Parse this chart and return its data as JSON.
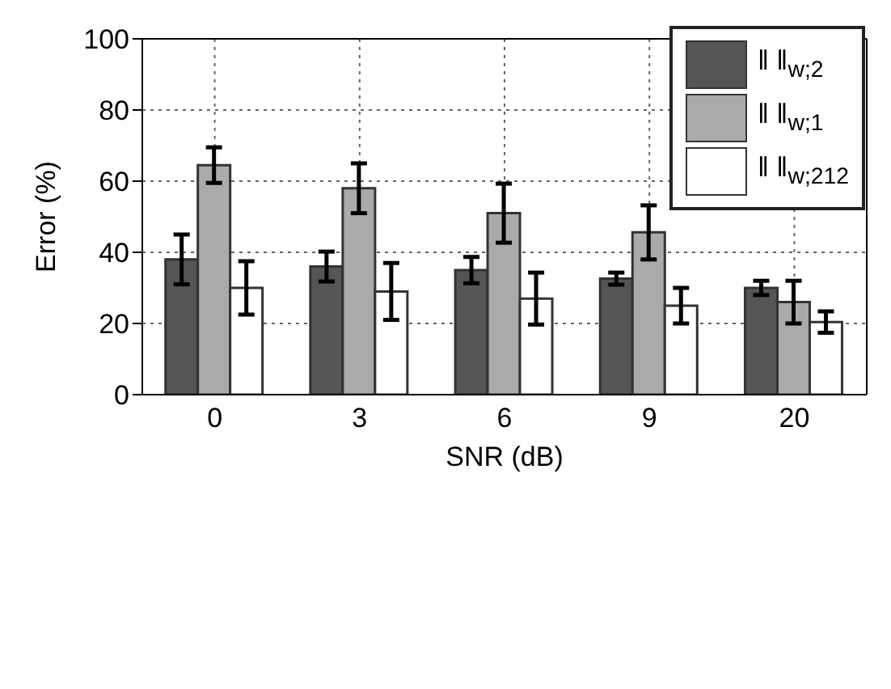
{
  "chart_data": {
    "type": "bar",
    "xlabel": "SNR (dB)",
    "ylabel": "Error (%)",
    "categories": [
      "0",
      "3",
      "6",
      "9",
      "20"
    ],
    "series": [
      {
        "name": "‖ ‖$_{w;2}$",
        "color": "#555555",
        "values": [
          38,
          36,
          35,
          32.6,
          30
        ],
        "errors": [
          7,
          4.2,
          3.7,
          1.7,
          2
        ]
      },
      {
        "name": "‖ ‖$_{w;1}$",
        "color": "#aaaaaa",
        "values": [
          64.5,
          58,
          51,
          45.6,
          26
        ],
        "errors": [
          5,
          7,
          8.3,
          7.6,
          6
        ]
      },
      {
        "name": "‖ ‖$_{w;212}$",
        "color": "#ffffff",
        "values": [
          30,
          29,
          27,
          25,
          20.4
        ],
        "errors": [
          7.5,
          8,
          7.3,
          5,
          3
        ]
      }
    ],
    "ylim": [
      0,
      100
    ],
    "yticks": [
      0,
      20,
      40,
      60,
      80,
      100
    ],
    "grid": true,
    "legend": "top right"
  }
}
